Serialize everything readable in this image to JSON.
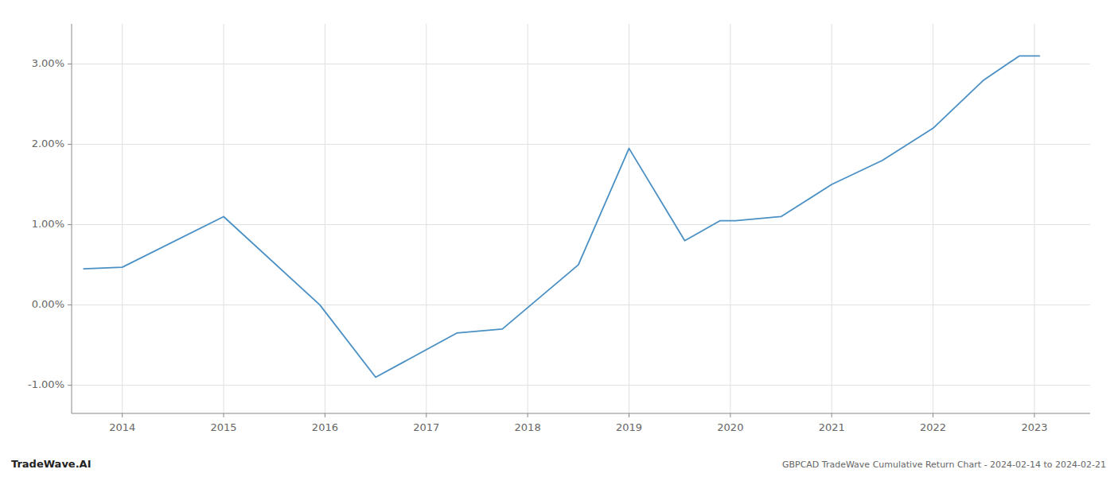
{
  "chart_data": {
    "type": "line",
    "title": "GBPCAD TradeWave Cumulative Return Chart - 2024-02-14 to 2024-02-21",
    "annotations": [
      "TradeWave.AI"
    ],
    "x": [
      2013.62,
      2014.0,
      2015.0,
      2015.95,
      2016.5,
      2017.3,
      2017.75,
      2018.5,
      2019.0,
      2019.55,
      2019.9,
      2020.05,
      2020.5,
      2021.0,
      2021.5,
      2022.0,
      2022.5,
      2022.85,
      2023.05
    ],
    "values": [
      0.0045,
      0.0047,
      0.011,
      0.0,
      -0.009,
      -0.0035,
      -0.003,
      0.005,
      0.0195,
      0.008,
      0.0105,
      0.0105,
      0.011,
      0.015,
      0.018,
      0.022,
      0.028,
      0.031,
      0.031
    ],
    "color": "#4a90c4",
    "xlim": [
      2013.5,
      2023.55
    ],
    "xticks": [
      2014,
      2015,
      2016,
      2017,
      2018,
      2019,
      2020,
      2021,
      2022,
      2023
    ],
    "ylim": [
      -0.0135,
      0.035
    ],
    "yticks": [
      {
        "value": -0.01,
        "label": "-1.00%"
      },
      {
        "value": 0.0,
        "label": "0.00%"
      },
      {
        "value": 0.01,
        "label": "1.00%"
      },
      {
        "value": 0.02,
        "label": "2.00%"
      },
      {
        "value": 0.03,
        "label": "3.00%"
      }
    ],
    "grid": true
  }
}
